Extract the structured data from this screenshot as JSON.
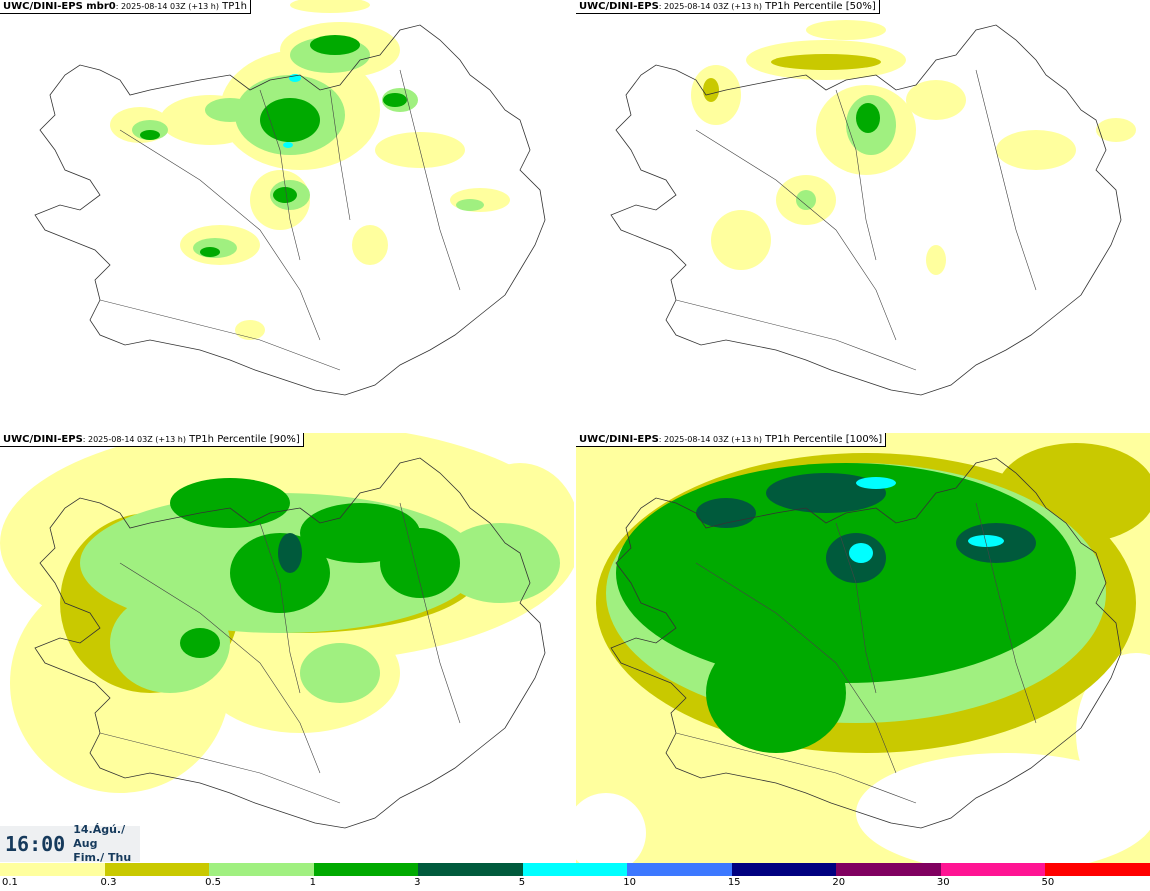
{
  "panels": [
    {
      "model": "UWC/DINI-EPS mbr0",
      "subtitle": ": 2025-08-14 03Z (+13 h)",
      "field": "TP1h"
    },
    {
      "model": "UWC/DINI-EPS",
      "subtitle": ": 2025-08-14 03Z (+13 h)",
      "field": "TP1h Percentile [50%]"
    },
    {
      "model": "UWC/DINI-EPS",
      "subtitle": ": 2025-08-14 03Z (+13 h)",
      "field": "TP1h Percentile [90%]"
    },
    {
      "model": "UWC/DINI-EPS",
      "subtitle": ": 2025-08-14 03Z (+13 h)",
      "field": "TP1h Percentile [100%]"
    }
  ],
  "time": {
    "clock": "16:00",
    "date_line1": "14.Ágú./ Aug",
    "date_line2": "Fim./ Thu"
  },
  "legend": {
    "colors": [
      "#ffff9e",
      "#c9c900",
      "#a0f080",
      "#00aa00",
      "#005a3c",
      "#00ffff",
      "#3c78ff",
      "#000080",
      "#800060",
      "#ff1493",
      "#ff0000"
    ],
    "ticks": [
      "0.1",
      "0.3",
      "0.5",
      "1",
      "3",
      "5",
      "10",
      "15",
      "20",
      "30",
      "50"
    ]
  }
}
